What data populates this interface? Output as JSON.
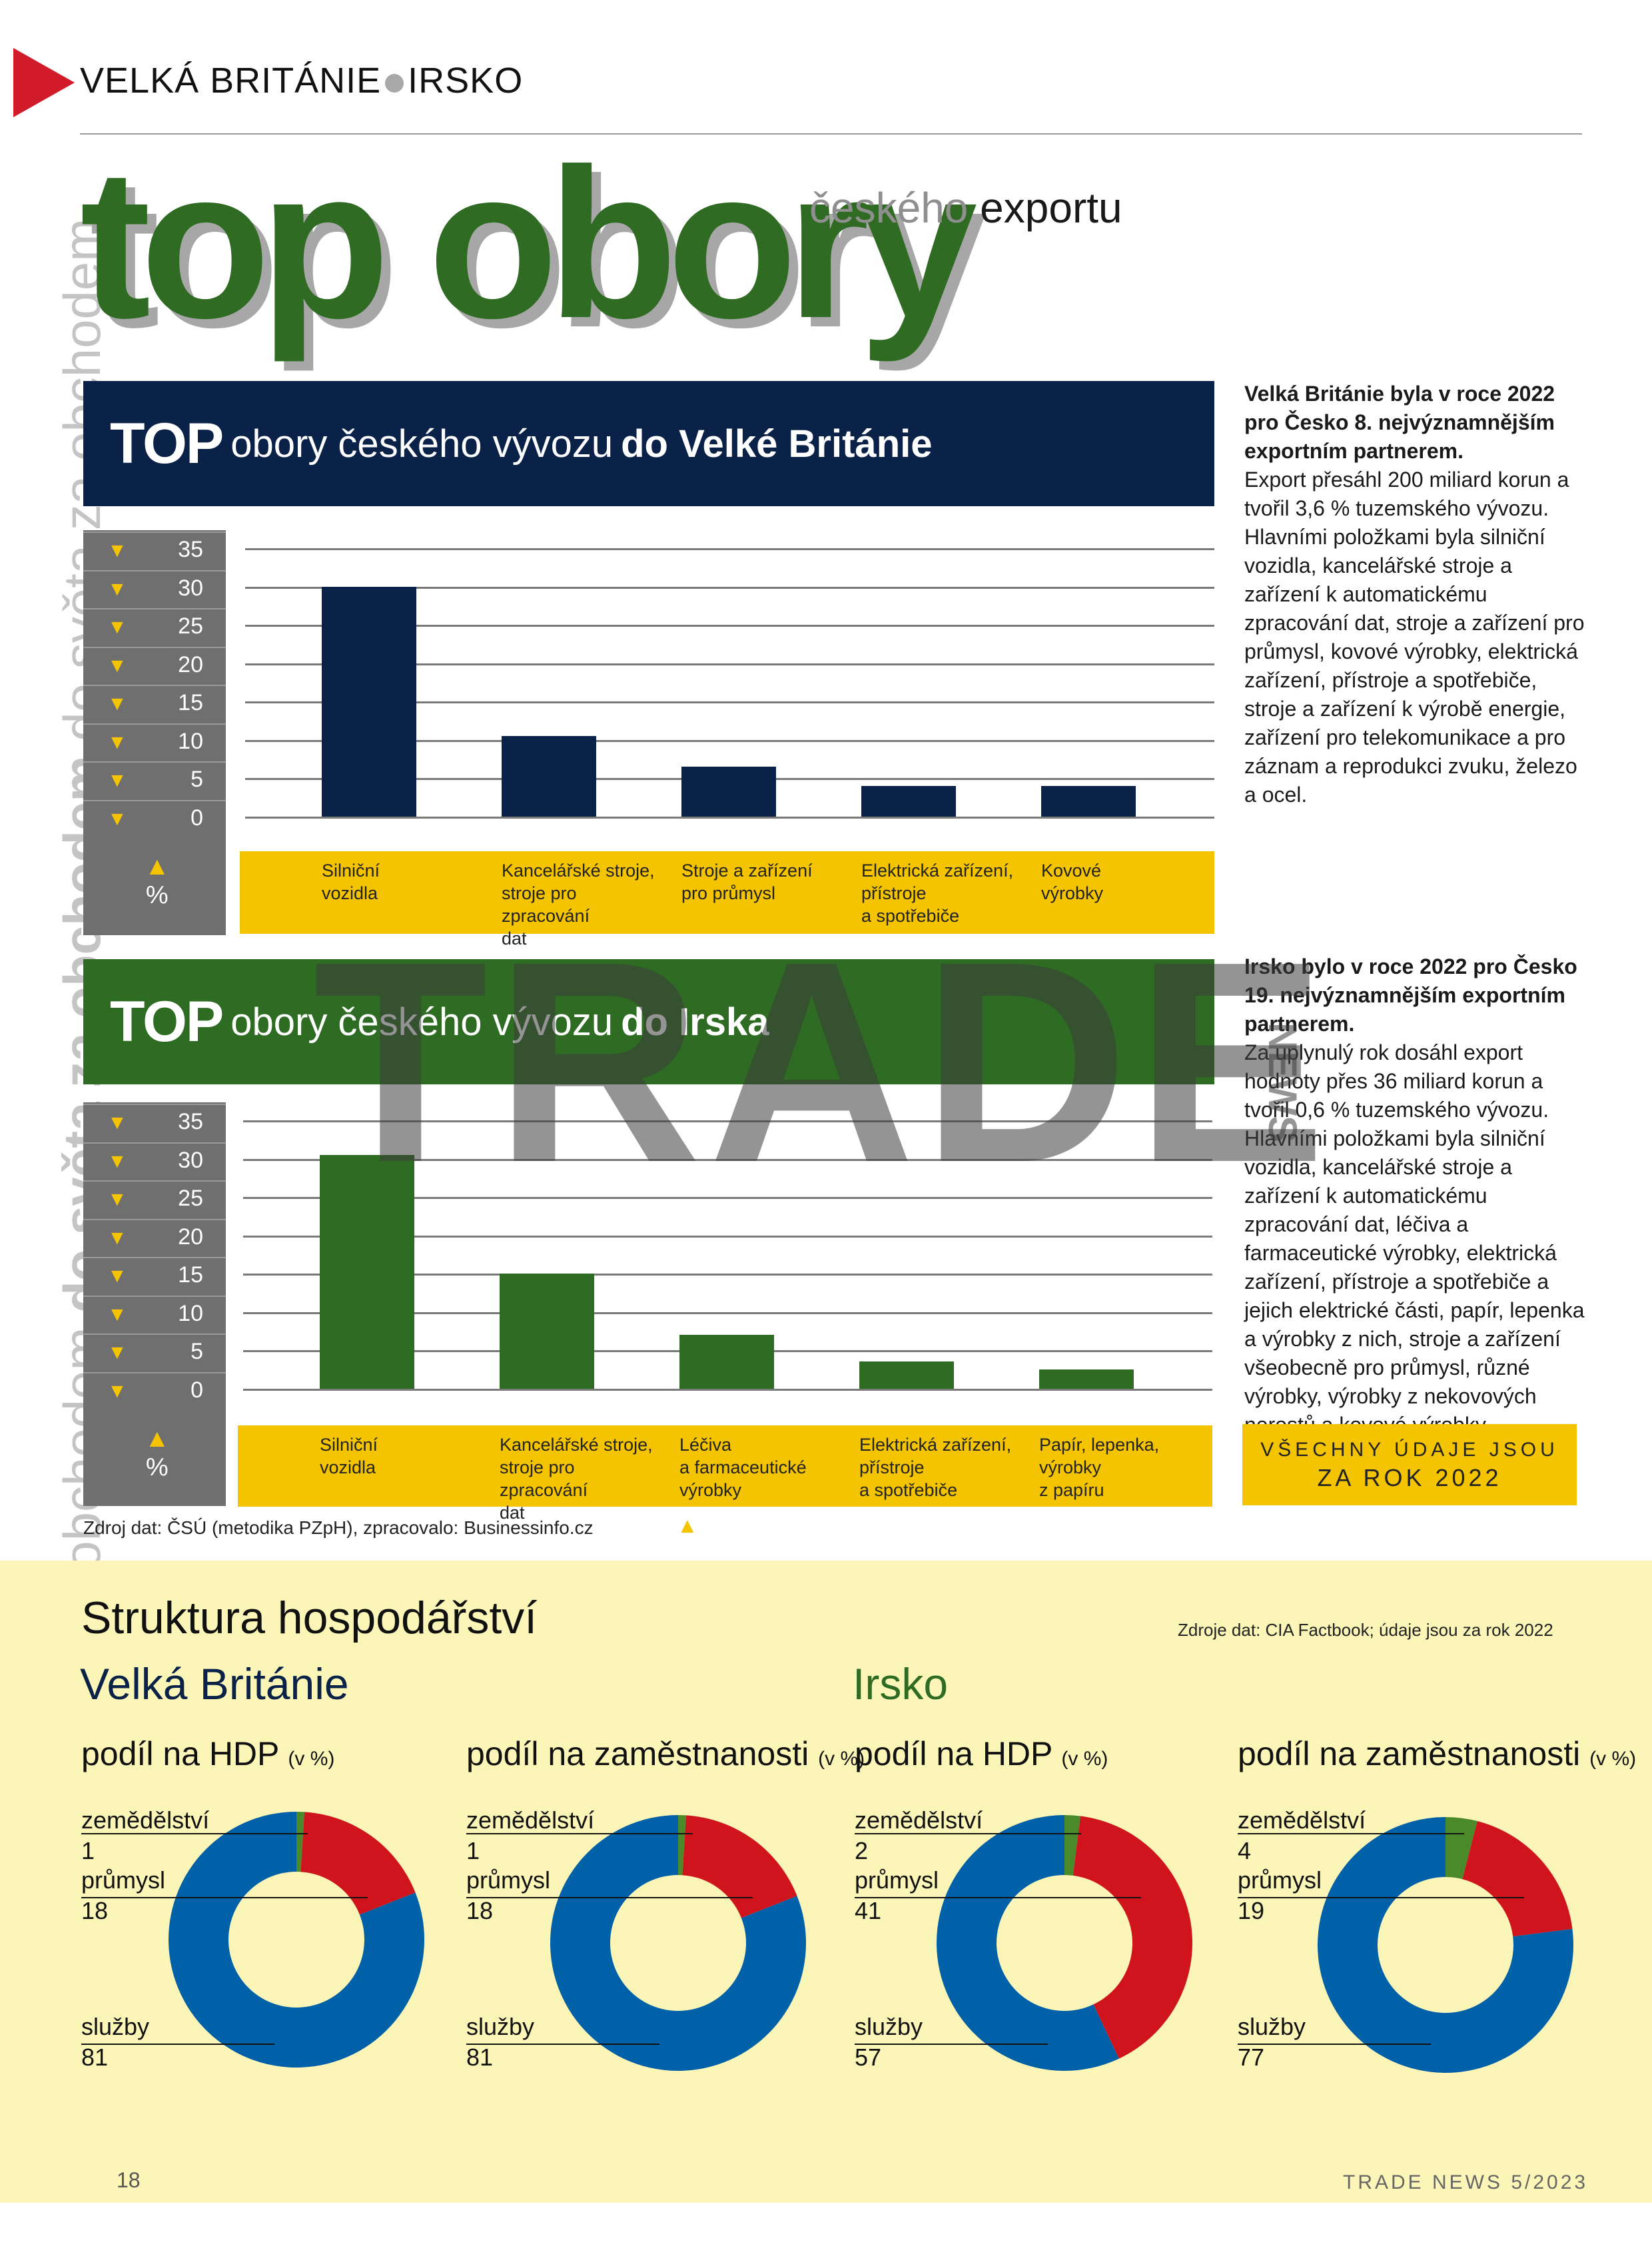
{
  "header": {
    "section_left": "VELKÁ BRITÁNIE",
    "section_right": "IRSKO"
  },
  "side_text": {
    "part1": "obchodem do světa za obchodem ",
    "part2": "do světa za obchodem",
    "part3": " do světa za obchodem"
  },
  "title": {
    "main": "top obory",
    "sub_gray": "českého",
    "sub_dark": " exportu"
  },
  "uk_chart": {
    "banner_top": "TOP",
    "banner_mid": "obory českého vývozu",
    "banner_bold": "do Velké Británie",
    "color": "#0b2248",
    "ticks": [
      "35",
      "30",
      "25",
      "20",
      "15",
      "10",
      "5",
      "0"
    ],
    "pct_arrow": "▲",
    "pct_label": "%",
    "chart_data": {
      "type": "bar",
      "categories": [
        "Silniční vozidla",
        "Kancelářské stroje, stroje pro zpracování dat",
        "Stroje a zařízení pro průmysl",
        "Elektrická zařízení, přístroje a spotřebiče",
        "Kovové výrobky"
      ],
      "values": [
        30,
        10.5,
        6.5,
        4,
        4
      ],
      "ylim": [
        0,
        35
      ]
    },
    "category_lines": [
      [
        "Silniční",
        "vozidla",
        ""
      ],
      [
        "Kancelářské stroje,",
        "stroje pro zpracování",
        "dat"
      ],
      [
        "Stroje a zařízení",
        "pro průmysl",
        ""
      ],
      [
        "Elektrická zařízení,",
        "přístroje",
        "a spotřebiče"
      ],
      [
        "Kovové",
        "výrobky",
        ""
      ]
    ]
  },
  "ie_chart": {
    "banner_top": "TOP",
    "banner_mid": "obory českého vývozu",
    "banner_bold": "do Irska",
    "color": "#2e6b23",
    "ticks": [
      "35",
      "30",
      "25",
      "20",
      "15",
      "10",
      "5",
      "0"
    ],
    "pct_arrow": "▲",
    "pct_label": "%",
    "chart_data": {
      "type": "bar",
      "categories": [
        "Silniční vozidla",
        "Kancelářské stroje, stroje pro zpracování dat",
        "Léčiva a farmaceutické výrobky",
        "Elektrická zařízení, přístroje a spotřebiče",
        "Papír, lepenka, výrobky z papíru"
      ],
      "values": [
        30.5,
        15,
        7,
        3.5,
        2.5
      ],
      "ylim": [
        0,
        35
      ]
    },
    "category_lines": [
      [
        "Silniční",
        "vozidla",
        ""
      ],
      [
        "Kancelářské stroje,",
        "stroje pro zpracování",
        "dat"
      ],
      [
        "Léčiva",
        "a farmaceutické",
        "výrobky"
      ],
      [
        "Elektrická zařízení,",
        "přístroje",
        "a spotřebiče"
      ],
      [
        "Papír, lepenka,",
        "výrobky",
        "z papíru"
      ]
    ]
  },
  "uk_text": {
    "bold": "Velká Británie byla v roce 2022 pro Česko 8. nejvýznamnějším exportním partnerem.",
    "body": "Export přesáhl 200 miliard korun a tvořil 3,6 % tuzemského vývozu. Hlavními položkami byla silniční vozidla, kancelářské stroje a zařízení k automatickému zpracování dat, stroje a zařízení pro průmysl, kovové výrobky, elektrická zařízení, přístroje a spotřebiče, stroje a zařízení k výrobě energie, zařízení pro telekomunikace a pro záznam a reprodukci zvuku, železo a ocel."
  },
  "ie_text": {
    "bold": "Irsko bylo v roce 2022 pro Česko 19. nejvýznamnějším exportním partnerem.",
    "body": "Za uplynulý rok dosáhl export hodnoty přes 36 miliard korun a tvořil 0,6 % tuzemského vývozu. Hlavními položkami byla silniční vozidla, kancelářské stroje a zařízení k automatickému zpracování dat, léčiva a farmaceutické výrobky, elektrická zařízení, přístroje a spotřebiče a jejich elektrické části, papír, lepenka a výrobky z nich, stroje a zařízení všeobecně pro průmysl, různé výrobky, výrobky z nekovových nerostů a kovové výrobky."
  },
  "note_box": {
    "line1": "Všechny údaje jsou",
    "line2": "za rok 2022"
  },
  "source_trade": "Zdroj dat: ČSÚ (metodika PZpH), zpracovalo: Businessinfo.cz",
  "source_arrow": "▲",
  "economy": {
    "title": "Struktura hospodářství",
    "source": "Zdroje dat: CIA Factbook; údaje jsou za rok 2022",
    "uk_name": "Velká Británie",
    "ie_name": "Irsko",
    "uk_color": "#0b2248",
    "ie_color": "#2e6b23",
    "colors": {
      "zemedelstvi": "#4a8a2a",
      "prumysl": "#d0141e",
      "sluzby": "#0060a8"
    },
    "head_gdp": "podíl na HDP",
    "head_emp": "podíl na zaměstnanosti",
    "unit": "(v %)",
    "labels": {
      "agri": "zemědělství",
      "ind": "průmysl",
      "serv": "služby"
    },
    "donuts": [
      {
        "agri": "1",
        "ind": "18",
        "serv": "81"
      },
      {
        "agri": "1",
        "ind": "18",
        "serv": "81"
      },
      {
        "agri": "2",
        "ind": "41",
        "serv": "57"
      },
      {
        "agri": "4",
        "ind": "19",
        "serv": "77"
      }
    ]
  },
  "watermark": {
    "main": "TRADE",
    "small": "NEWS"
  },
  "footer": {
    "page": "18",
    "magazine": "Trade News 5/2023"
  }
}
